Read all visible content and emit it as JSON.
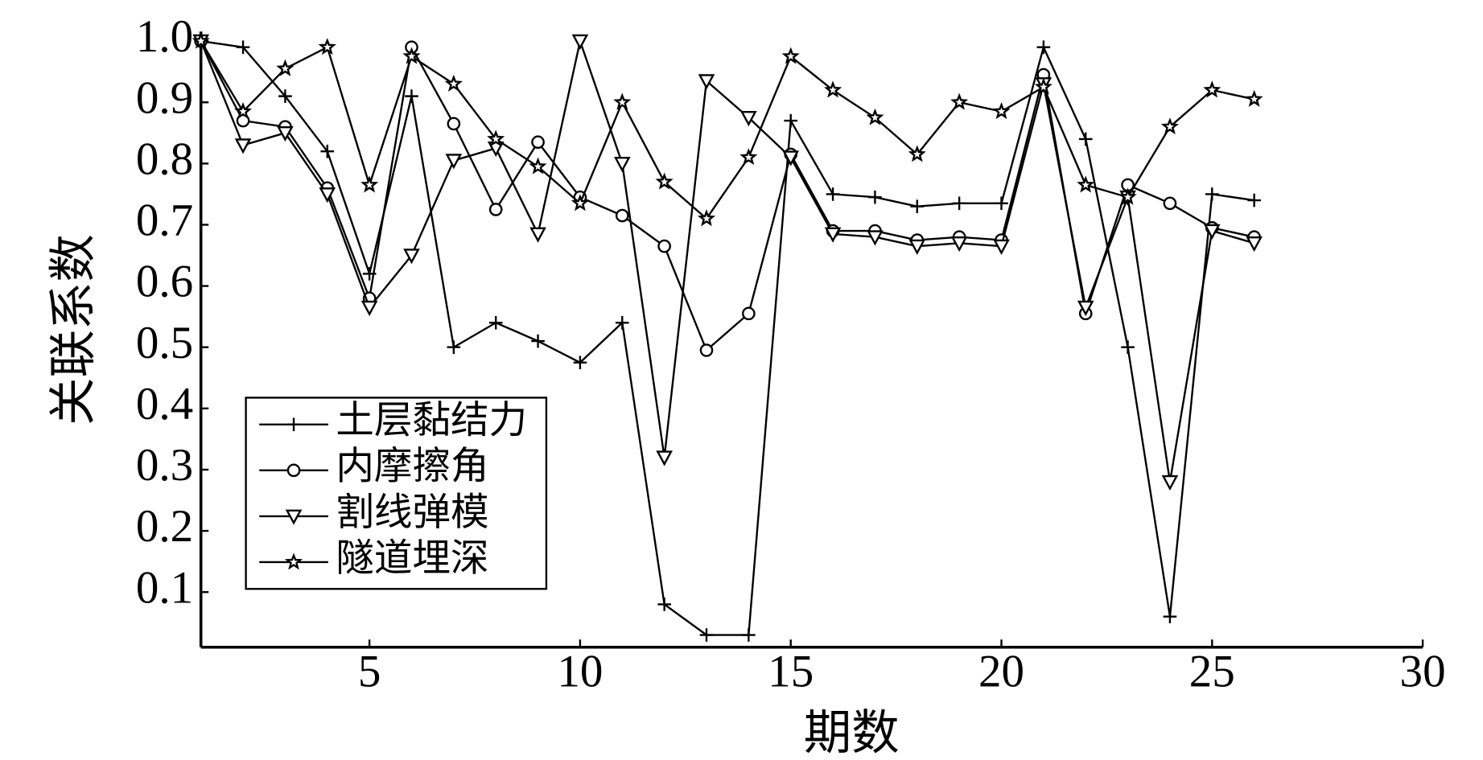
{
  "chart_data": {
    "type": "line",
    "x_label": "期数",
    "y_label": "关联系数",
    "x": [
      1,
      2,
      3,
      4,
      5,
      6,
      7,
      8,
      9,
      10,
      11,
      12,
      13,
      14,
      15,
      16,
      17,
      18,
      19,
      20,
      21,
      22,
      23,
      24,
      25,
      26
    ],
    "xlim": [
      1,
      30
    ],
    "xticks": [
      5,
      10,
      15,
      20,
      25,
      30
    ],
    "ylim": [
      0.01,
      1.0
    ],
    "yticks": [
      0.1,
      0.2,
      0.3,
      0.4,
      0.5,
      0.6,
      0.7,
      0.8,
      0.9,
      {
        "value": 1,
        "label": "1.0"
      }
    ],
    "legend": "lower left",
    "series": [
      {
        "name": "土层黏结力",
        "color": "#000000",
        "marker": "plus",
        "values": [
          1.0,
          0.99,
          0.91,
          0.82,
          0.62,
          0.91,
          0.5,
          0.54,
          0.51,
          0.475,
          0.54,
          0.08,
          0.03,
          0.03,
          0.87,
          0.75,
          0.745,
          0.73,
          0.735,
          0.735,
          0.99,
          0.84,
          0.5,
          0.06,
          0.75,
          0.74
        ]
      },
      {
        "name": "内摩擦角",
        "color": "#000000",
        "marker": "circle",
        "values": [
          1.0,
          0.87,
          0.86,
          0.76,
          0.58,
          0.99,
          0.865,
          0.725,
          0.835,
          0.745,
          0.715,
          0.665,
          0.495,
          0.555,
          0.815,
          0.69,
          0.69,
          0.675,
          0.68,
          0.675,
          0.945,
          0.555,
          0.765,
          0.735,
          0.695,
          0.68
        ]
      },
      {
        "name": "割线弹模",
        "color": "#000000",
        "marker": "triangle-down",
        "values": [
          1.0,
          0.83,
          0.85,
          0.75,
          0.565,
          0.65,
          0.805,
          0.825,
          0.685,
          1.0,
          0.8,
          0.32,
          0.935,
          0.875,
          0.81,
          0.685,
          0.68,
          0.665,
          0.67,
          0.665,
          0.93,
          0.565,
          0.745,
          0.28,
          0.69,
          0.67
        ]
      },
      {
        "name": "隧道埋深",
        "color": "#000000",
        "marker": "star",
        "values": [
          1.0,
          0.885,
          0.955,
          0.99,
          0.765,
          0.975,
          0.93,
          0.84,
          0.795,
          0.735,
          0.9,
          0.77,
          0.71,
          0.81,
          0.975,
          0.92,
          0.875,
          0.815,
          0.9,
          0.885,
          0.925,
          0.765,
          0.745,
          0.86,
          0.92,
          0.905
        ]
      }
    ]
  }
}
